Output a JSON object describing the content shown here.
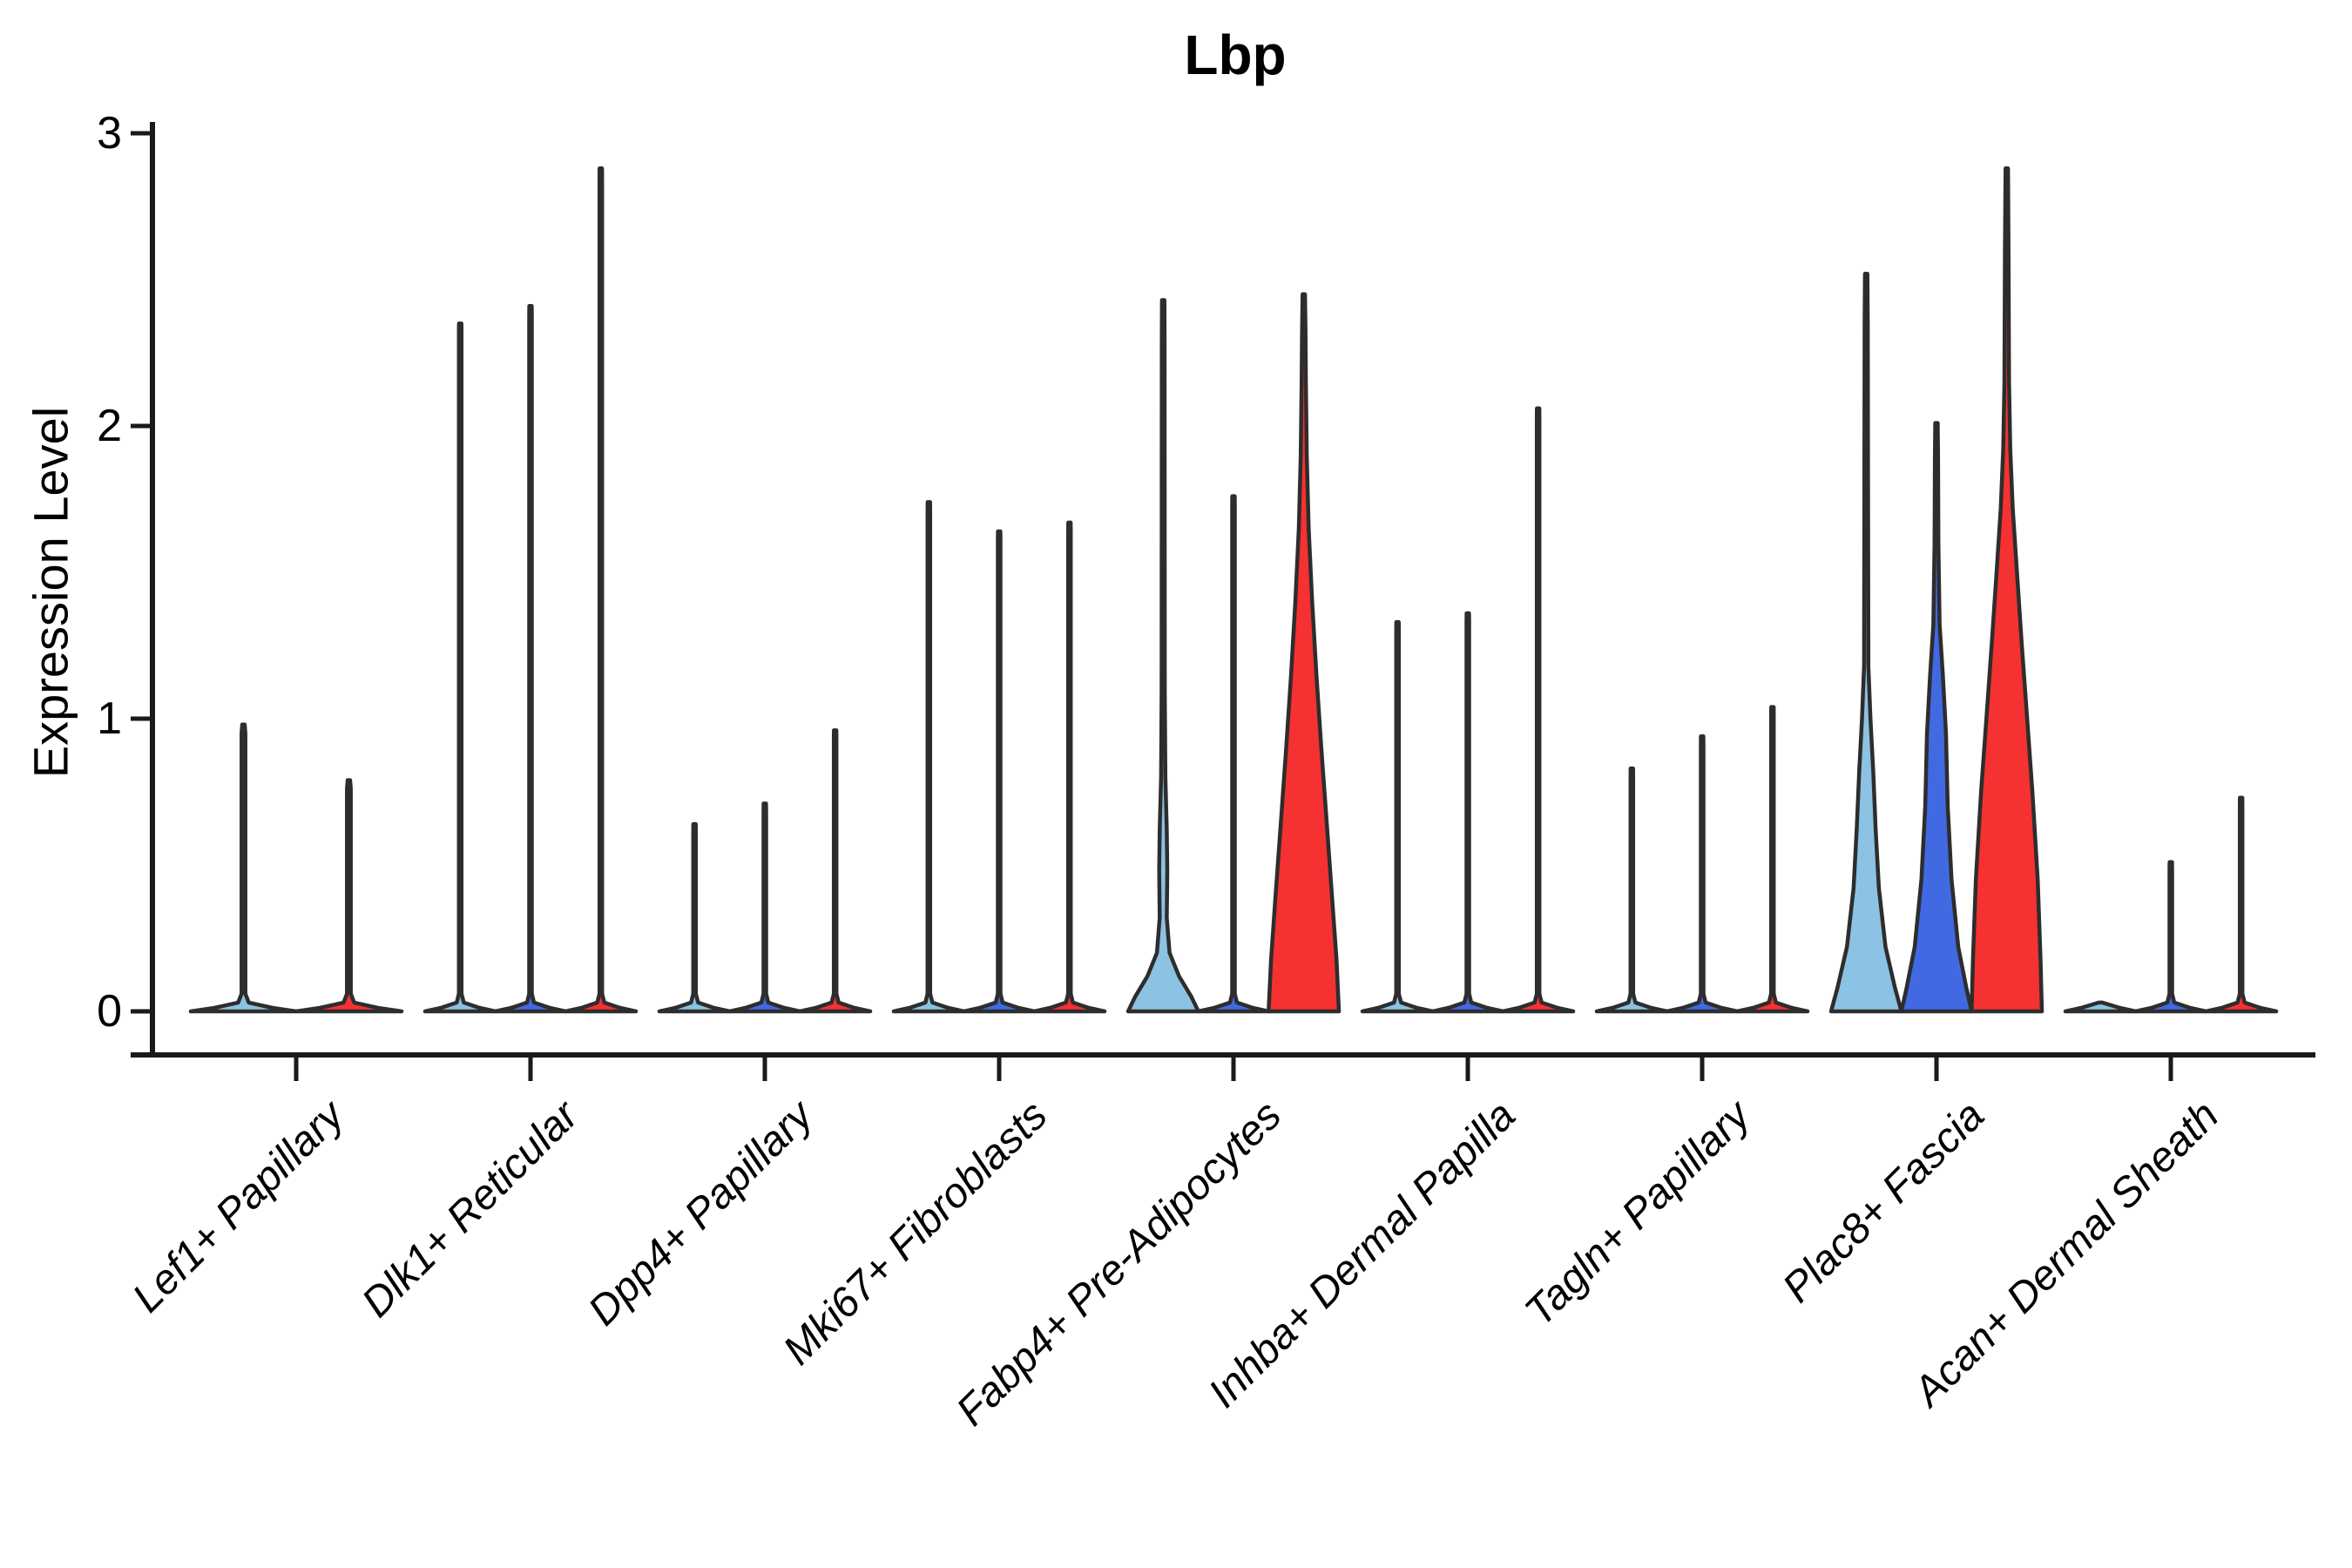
{
  "chart_data": {
    "type": "violin",
    "title": "Lbp",
    "ylabel": "Expression Level",
    "xlabel": "",
    "yticks": [
      0,
      1,
      2,
      3
    ],
    "ylim": [
      0,
      3
    ],
    "grid": false,
    "legend_position": "none",
    "colors": {
      "light_blue": "#8CC2E3",
      "royal_blue": "#4169E1",
      "red": "#F53131",
      "outline": "#2D2D2D",
      "axis": "#1A1A1A"
    },
    "groups": [
      {
        "label": "Lef1+ Papillary",
        "violins": [
          {
            "color": "light_blue",
            "max": 0.98
          },
          {
            "color": "red",
            "max": 0.79
          }
        ]
      },
      {
        "label": "Dlk1+ Reticular",
        "violins": [
          {
            "color": "light_blue",
            "max": 2.35
          },
          {
            "color": "royal_blue",
            "max": 2.41
          },
          {
            "color": "red",
            "max": 2.88
          }
        ]
      },
      {
        "label": "Dpp4+ Papillary",
        "violins": [
          {
            "color": "light_blue",
            "max": 0.64
          },
          {
            "color": "royal_blue",
            "max": 0.71
          },
          {
            "color": "red",
            "max": 0.96
          }
        ]
      },
      {
        "label": "Mki67+ Fibroblasts",
        "violins": [
          {
            "color": "light_blue",
            "max": 1.74
          },
          {
            "color": "royal_blue",
            "max": 1.64
          },
          {
            "color": "red",
            "max": 1.67
          }
        ]
      },
      {
        "label": "Fabp4+ Pre-Adipocytes",
        "violins": [
          {
            "color": "light_blue",
            "max": 2.43,
            "profile": [
              [
                0,
                1.0
              ],
              [
                0.05,
                0.8
              ],
              [
                0.12,
                0.45
              ],
              [
                0.2,
                0.18
              ],
              [
                0.32,
                0.1
              ],
              [
                0.48,
                0.115
              ],
              [
                0.62,
                0.1
              ],
              [
                0.8,
                0.06
              ],
              [
                1.1,
                0.045
              ],
              [
                2.3,
                0.04
              ],
              [
                2.43,
                0.018
              ]
            ]
          },
          {
            "color": "royal_blue",
            "max": 1.76
          },
          {
            "color": "red",
            "max": 2.45,
            "profile": [
              [
                0,
                1.0
              ],
              [
                0.18,
                0.93
              ],
              [
                0.4,
                0.8
              ],
              [
                0.65,
                0.65
              ],
              [
                0.9,
                0.5
              ],
              [
                1.15,
                0.36
              ],
              [
                1.4,
                0.24
              ],
              [
                1.65,
                0.14
              ],
              [
                1.9,
                0.085
              ],
              [
                2.15,
                0.06
              ],
              [
                2.32,
                0.05
              ],
              [
                2.45,
                0.02
              ]
            ]
          }
        ]
      },
      {
        "label": "Inhba+ Dermal Papilla",
        "violins": [
          {
            "color": "light_blue",
            "max": 1.33
          },
          {
            "color": "royal_blue",
            "max": 1.36
          },
          {
            "color": "red",
            "max": 2.06
          }
        ]
      },
      {
        "label": "Tagln+ Papillary",
        "violins": [
          {
            "color": "light_blue",
            "max": 0.83
          },
          {
            "color": "royal_blue",
            "max": 0.94
          },
          {
            "color": "red",
            "max": 1.04
          }
        ]
      },
      {
        "label": "Plac8+ Fascia",
        "violins": [
          {
            "color": "light_blue",
            "max": 2.52,
            "profile": [
              [
                0,
                1.0
              ],
              [
                0.08,
                0.82
              ],
              [
                0.22,
                0.55
              ],
              [
                0.42,
                0.36
              ],
              [
                0.62,
                0.27
              ],
              [
                0.82,
                0.2
              ],
              [
                1.0,
                0.12
              ],
              [
                1.18,
                0.06
              ],
              [
                2.35,
                0.045
              ],
              [
                2.52,
                0.018
              ]
            ]
          },
          {
            "color": "royal_blue",
            "max": 2.01,
            "profile": [
              [
                0,
                1.0
              ],
              [
                0.08,
                0.85
              ],
              [
                0.22,
                0.62
              ],
              [
                0.45,
                0.43
              ],
              [
                0.7,
                0.32
              ],
              [
                0.95,
                0.27
              ],
              [
                1.15,
                0.18
              ],
              [
                1.32,
                0.09
              ],
              [
                1.6,
                0.055
              ],
              [
                1.9,
                0.045
              ],
              [
                2.01,
                0.018
              ]
            ]
          },
          {
            "color": "red",
            "max": 2.88,
            "profile": [
              [
                0,
                1.0
              ],
              [
                0.18,
                0.96
              ],
              [
                0.45,
                0.88
              ],
              [
                0.75,
                0.73
              ],
              [
                1.0,
                0.58
              ],
              [
                1.25,
                0.43
              ],
              [
                1.5,
                0.29
              ],
              [
                1.72,
                0.17
              ],
              [
                1.92,
                0.1
              ],
              [
                2.15,
                0.065
              ],
              [
                2.6,
                0.05
              ],
              [
                2.88,
                0.018
              ]
            ]
          }
        ]
      },
      {
        "label": "Acan+ Dermal Sheath",
        "violins": [
          {
            "color": "light_blue",
            "max": 0
          },
          {
            "color": "royal_blue",
            "max": 0.51
          },
          {
            "color": "red",
            "max": 0.73
          }
        ]
      }
    ]
  }
}
